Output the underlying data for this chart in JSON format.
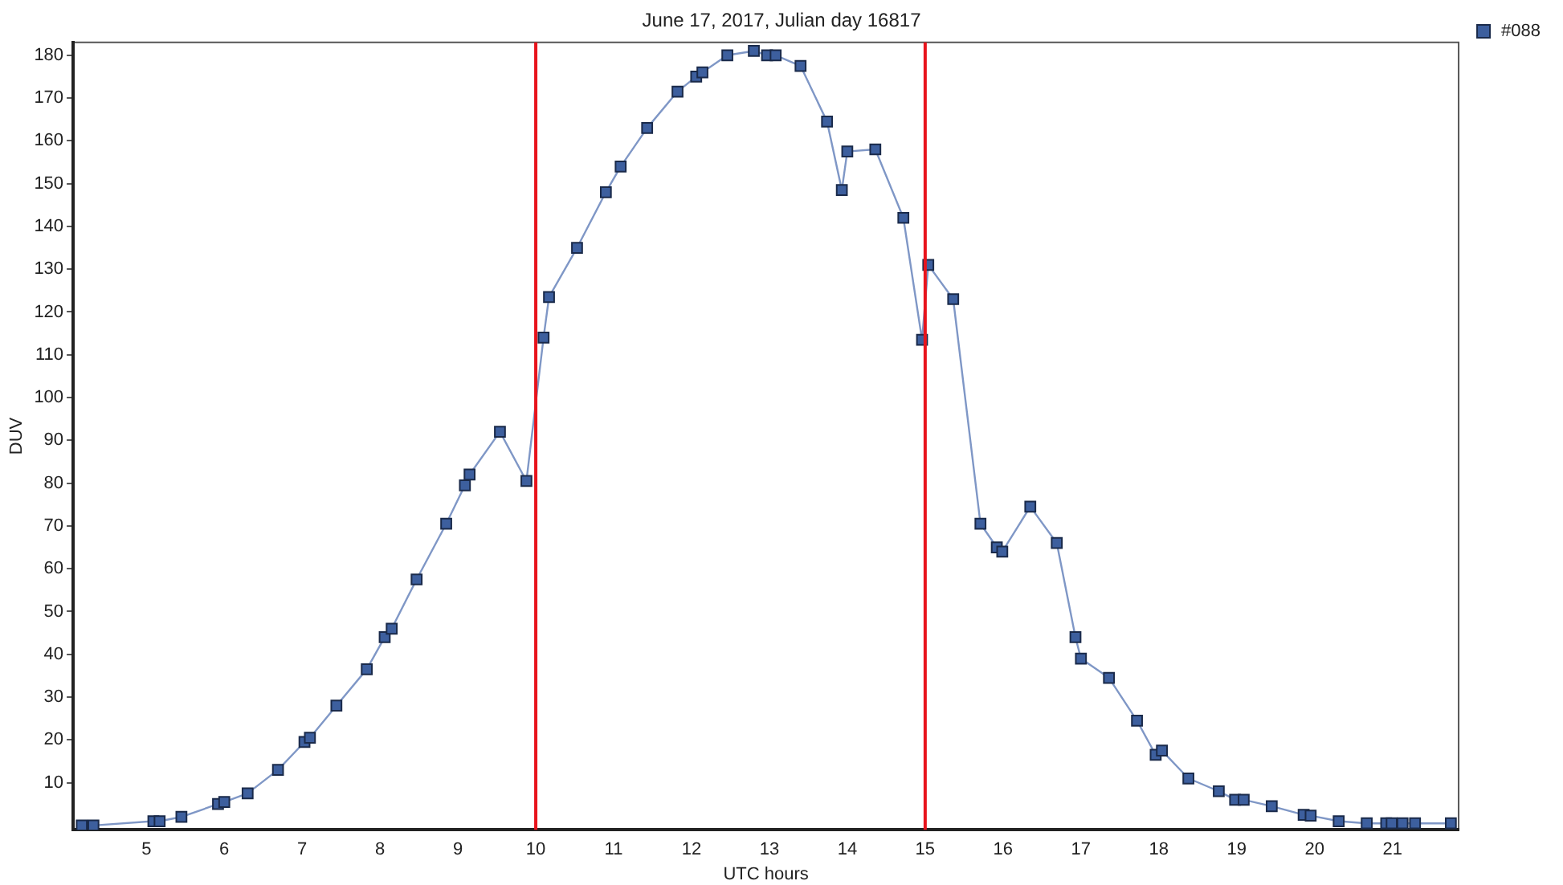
{
  "chart_data": {
    "type": "line",
    "title": "June 17, 2017, Julian day 16817",
    "xlabel": "UTC hours",
    "ylabel": "DUV",
    "xlim": [
      4.06,
      21.85
    ],
    "ylim": [
      -1,
      183
    ],
    "xticks": [
      5,
      6,
      7,
      8,
      9,
      10,
      11,
      12,
      13,
      14,
      15,
      16,
      17,
      18,
      19,
      20,
      21
    ],
    "yticks": [
      10,
      20,
      30,
      40,
      50,
      60,
      70,
      80,
      90,
      100,
      110,
      120,
      130,
      140,
      150,
      160,
      170,
      180
    ],
    "grid": false,
    "legend": "top right",
    "marker": "square",
    "line_style": "solid",
    "ref_lines": [
      {
        "axis": "x",
        "value": 10,
        "color": "#e8141c"
      },
      {
        "axis": "x",
        "value": 15,
        "color": "#e8141c"
      }
    ],
    "series": [
      {
        "name": "#088",
        "color": "#3d5f9e",
        "x": [
          4.17,
          4.32,
          5.09,
          5.17,
          5.45,
          5.92,
          6.0,
          6.3,
          6.69,
          7.03,
          7.1,
          7.44,
          7.83,
          8.06,
          8.15,
          8.47,
          8.85,
          9.09,
          9.15,
          9.54,
          9.88,
          10.1,
          10.17,
          10.53,
          10.9,
          11.09,
          11.43,
          11.82,
          12.06,
          12.14,
          12.46,
          12.8,
          12.97,
          13.08,
          13.4,
          13.74,
          13.93,
          14.0,
          14.36,
          14.72,
          14.96,
          15.04,
          15.36,
          15.71,
          15.92,
          15.99,
          16.35,
          16.69,
          16.93,
          17.0,
          17.36,
          17.72,
          17.96,
          18.04,
          18.38,
          18.77,
          18.98,
          19.09,
          19.45,
          19.86,
          19.95,
          20.31,
          20.67,
          20.92,
          20.99,
          21.13,
          21.29,
          21.75
        ],
        "values": [
          0,
          0,
          1,
          1,
          2,
          5,
          5.5,
          7.5,
          13,
          19.5,
          20.5,
          28,
          36.5,
          44,
          46,
          57.5,
          70.5,
          79.5,
          82,
          92,
          80.5,
          114,
          123.5,
          135,
          148,
          154,
          163,
          171.5,
          175,
          176,
          180,
          181,
          180,
          180,
          177.5,
          164.5,
          148.5,
          157.5,
          158,
          142,
          113.5,
          131,
          123,
          70.5,
          65,
          64,
          74.5,
          66,
          44,
          39,
          34.5,
          24.5,
          16.5,
          17.5,
          11,
          8,
          6,
          6,
          4.5,
          2.5,
          2.3,
          1,
          0.5,
          0.5,
          0.5,
          0.5,
          0.5,
          0.5
        ]
      }
    ]
  }
}
